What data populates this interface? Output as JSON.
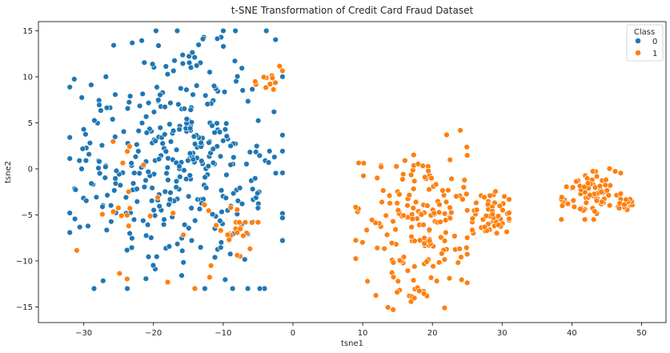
{
  "chart_data": {
    "type": "scatter",
    "title": "t-SNE Transformation of Credit Card Fraud Dataset",
    "xlabel": "tsne1",
    "ylabel": "tsne2",
    "xlim": [
      -36.5,
      53.5
    ],
    "ylim": [
      -16.7,
      16.0
    ],
    "x_ticks": [
      -30,
      -20,
      -10,
      0,
      10,
      20,
      30,
      40,
      50
    ],
    "y_ticks": [
      -15,
      -10,
      -5,
      0,
      5,
      10,
      15
    ],
    "grid": false,
    "legend": {
      "title": "Class",
      "placement": "top-right",
      "entries": [
        {
          "label": "0",
          "color": "#1f77b4"
        },
        {
          "label": "1",
          "color": "#ff7f0e"
        }
      ]
    },
    "series": [
      {
        "name": "0",
        "color": "#1f77b4",
        "seed": 17,
        "clusters": [
          {
            "cx": -17,
            "cy": 1,
            "sx": 7.5,
            "sy": 6.5,
            "n": 380,
            "xmin": -32,
            "xmax": -1.5,
            "ymin": -13,
            "ymax": 15
          }
        ]
      },
      {
        "name": "1",
        "color": "#ff7f0e",
        "seed": 53,
        "clusters": [
          {
            "cx": 18,
            "cy": -6,
            "sx": 4.0,
            "sy": 4.2,
            "n": 180,
            "xmin": 9,
            "xmax": 25,
            "ymin": -15.3,
            "ymax": 4.5
          },
          {
            "cx": 28,
            "cy": -5,
            "sx": 1.6,
            "sy": 1.2,
            "n": 55,
            "xmin": 24,
            "xmax": 31,
            "ymin": -7.5,
            "ymax": -1
          },
          {
            "cx": 43,
            "cy": -2.8,
            "sx": 2.3,
            "sy": 1.3,
            "n": 75,
            "xmin": 38.5,
            "xmax": 47,
            "ymin": -5.5,
            "ymax": 2
          },
          {
            "cx": 48,
            "cy": -3.8,
            "sx": 0.6,
            "sy": 0.4,
            "n": 18,
            "xmin": 46.5,
            "xmax": 49.3,
            "ymin": -4.6,
            "ymax": -3.3
          },
          {
            "cx": -8,
            "cy": -7.5,
            "sx": 1.6,
            "sy": 1.4,
            "n": 18,
            "xmin": -11,
            "xmax": -5,
            "ymin": -10,
            "ymax": -5.8
          },
          {
            "cx": -4,
            "cy": 9.8,
            "sx": 1.3,
            "sy": 1.0,
            "n": 12,
            "xmin": -6,
            "xmax": -1.5,
            "ymin": 6.5,
            "ymax": 11.5
          },
          {
            "cx": -20,
            "cy": -6,
            "sx": 8,
            "sy": 5,
            "n": 30,
            "xmin": -31,
            "xmax": -8,
            "ymin": -13,
            "ymax": 6
          }
        ]
      }
    ]
  }
}
